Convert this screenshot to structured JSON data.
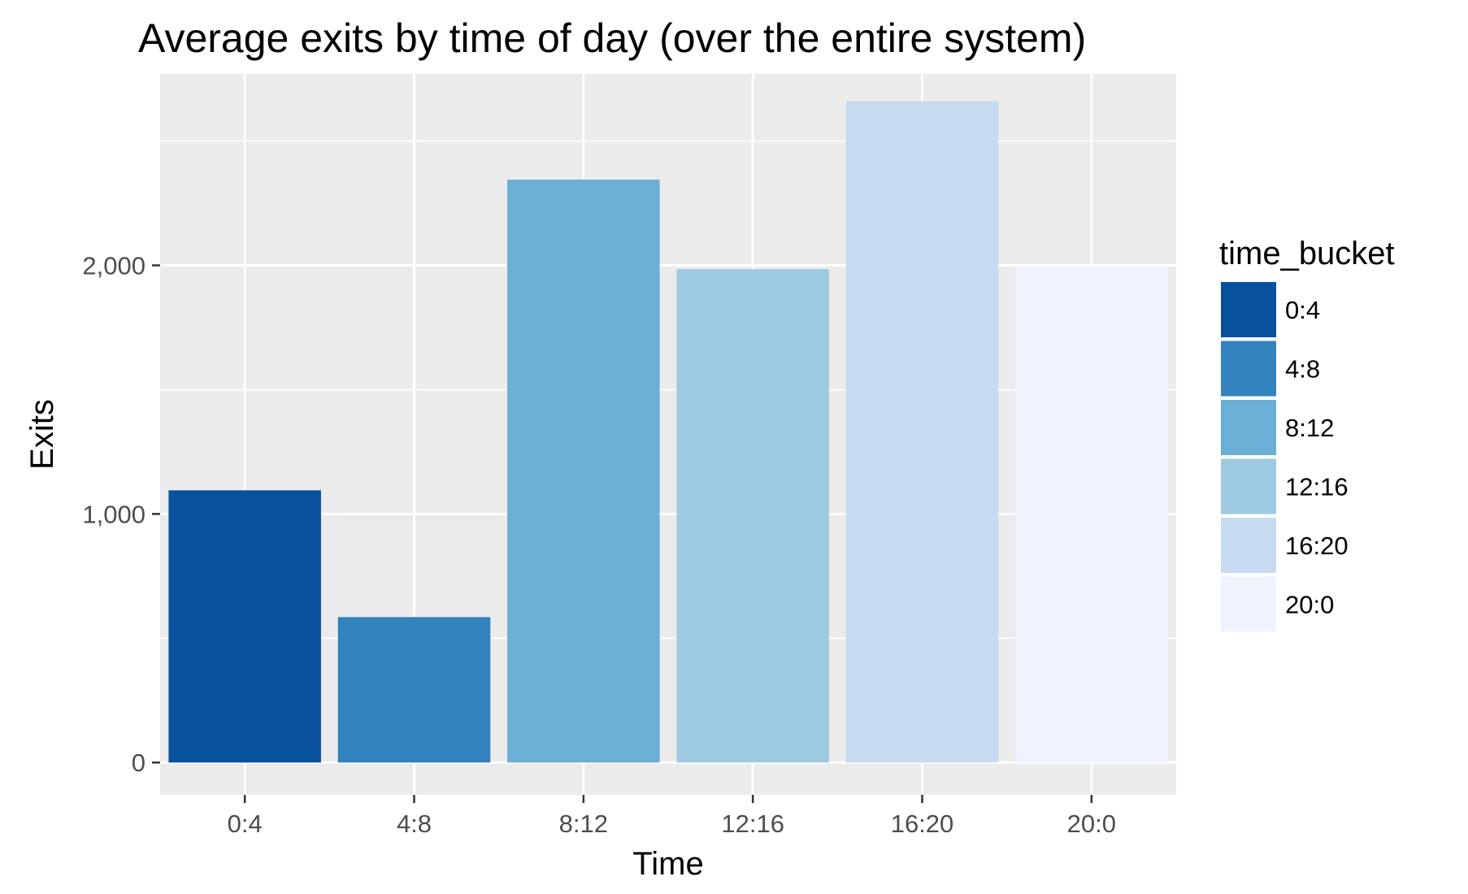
{
  "chart_data": {
    "type": "bar",
    "title": "Average exits by time of day (over the entire system)",
    "xlabel": "Time",
    "ylabel": "Exits",
    "categories": [
      "0:4",
      "4:8",
      "8:12",
      "12:16",
      "16:20",
      "20:0"
    ],
    "values": [
      1095,
      585,
      2345,
      1985,
      2660,
      1995
    ],
    "ylim": [
      -130,
      2770
    ],
    "yticks": [
      0,
      1000,
      2000
    ],
    "ytick_labels": [
      "0",
      "1,000",
      "2,000"
    ],
    "grid": true,
    "legend": {
      "title": "time_bucket",
      "position": "right",
      "items": [
        "0:4",
        "4:8",
        "8:12",
        "12:16",
        "16:20",
        "20:0"
      ]
    },
    "colors": [
      "#08519c",
      "#3182bd",
      "#6baed6",
      "#9ecae1",
      "#c6dbef",
      "#eff3ff"
    ],
    "panel_background": "#ebebeb",
    "grid_color": "#ffffff"
  }
}
